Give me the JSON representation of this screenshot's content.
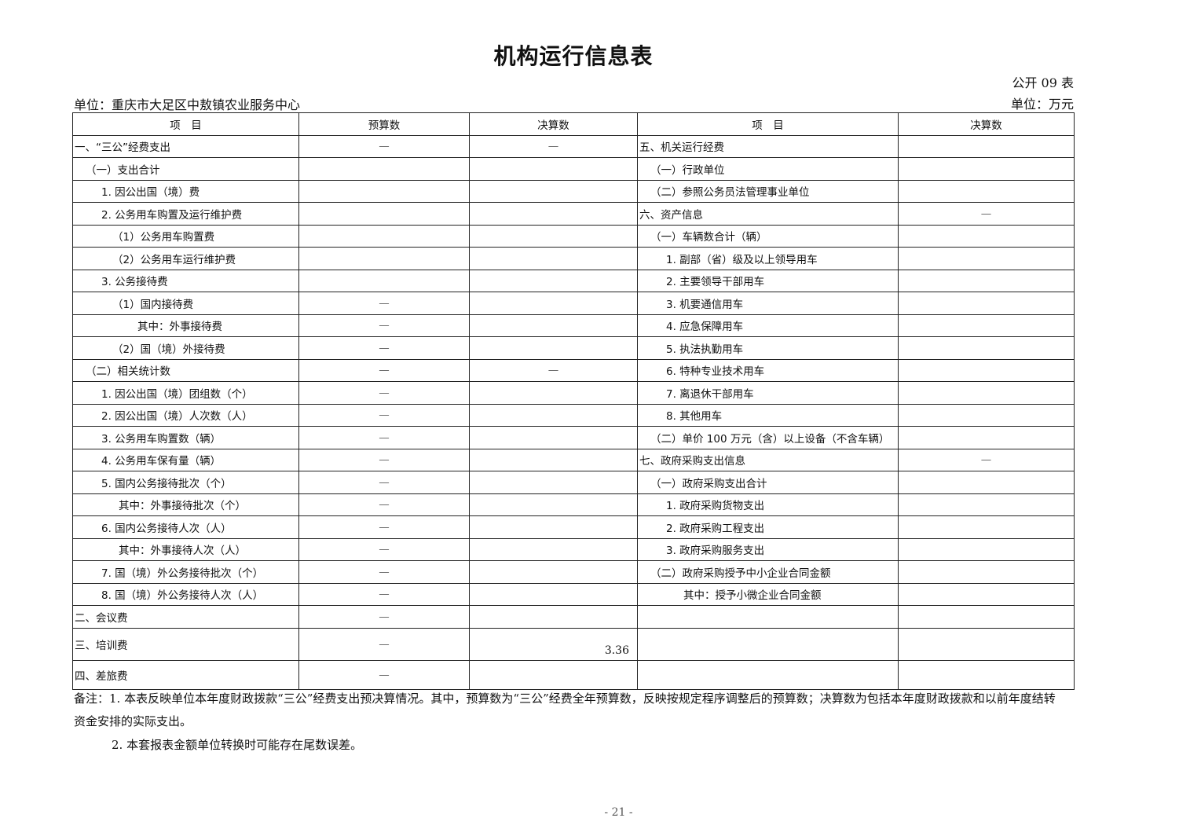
{
  "title": "机构运行信息表",
  "table_code": "公开 09 表",
  "unit_org": "单位：重庆市大足区中敖镇农业服务中心",
  "unit_money": "单位：万元",
  "headers": [
    "项　目",
    "预算数",
    "决算数",
    "项　目",
    "决算数"
  ],
  "rows": [
    [
      "一、“三公”经费支出",
      "—",
      "—",
      "五、机关运行经费",
      ""
    ],
    [
      "（一）支出合计",
      "",
      "",
      "（一）行政单位",
      ""
    ],
    [
      "1. 因公出国（境）费",
      "",
      "",
      "（二）参照公务员法管理事业单位",
      ""
    ],
    [
      "2. 公务用车购置及运行维护费",
      "",
      "",
      "六、资产信息",
      "—"
    ],
    [
      "（1）公务用车购置费",
      "",
      "",
      "（一）车辆数合计（辆）",
      ""
    ],
    [
      "（2）公务用车运行维护费",
      "",
      "",
      "1. 副部（省）级及以上领导用车",
      ""
    ],
    [
      "3. 公务接待费",
      "",
      "",
      "2. 主要领导干部用车",
      ""
    ],
    [
      "（1）国内接待费",
      "—",
      "",
      "3. 机要通信用车",
      ""
    ],
    [
      "其中：外事接待费",
      "—",
      "",
      "4. 应急保障用车",
      ""
    ],
    [
      "（2）国（境）外接待费",
      "—",
      "",
      "5. 执法执勤用车",
      ""
    ],
    [
      "（二）相关统计数",
      "—",
      "—",
      "6. 特种专业技术用车",
      ""
    ],
    [
      "1. 因公出国（境）团组数（个）",
      "—",
      "",
      "7. 离退休干部用车",
      ""
    ],
    [
      "2. 因公出国（境）人次数（人）",
      "—",
      "",
      "8. 其他用车",
      ""
    ],
    [
      "3. 公务用车购置数（辆）",
      "—",
      "",
      "（二）单价 100 万元（含）以上设备（不含车辆）",
      ""
    ],
    [
      "4. 公务用车保有量（辆）",
      "—",
      "",
      "七、政府采购支出信息",
      "—"
    ],
    [
      "5. 国内公务接待批次（个）",
      "—",
      "",
      "（一）政府采购支出合计",
      ""
    ],
    [
      "其中：外事接待批次（个）",
      "—",
      "",
      "1. 政府采购货物支出",
      ""
    ],
    [
      "6. 国内公务接待人次（人）",
      "—",
      "",
      "2. 政府采购工程支出",
      ""
    ],
    [
      "其中：外事接待人次（人）",
      "—",
      "",
      "3. 政府采购服务支出",
      ""
    ],
    [
      "7. 国（境）外公务接待批次（个）",
      "—",
      "",
      "（二）政府采购授予中小企业合同金额",
      ""
    ],
    [
      "8. 国（境）外公务接待人次（人）",
      "—",
      "",
      "其中：授予小微企业合同金额",
      ""
    ],
    [
      "二、会议费",
      "—",
      "",
      "",
      ""
    ],
    [
      "三、培训费",
      "—",
      "3.36",
      "",
      ""
    ],
    [
      "四、差旅费",
      "—",
      "",
      "",
      ""
    ]
  ],
  "notes": [
    "备注：1. 本表反映单位本年度财政拨款“三公”经费支出预决算情况。其中，预算数为“三公”经费全年预算数，反映按规定程序调整后的预算数；决算数为包括本年度财政拨款和以前年度结转",
    "资金安排的实际支出。",
    "2. 本套报表金额单位转换时可能存在尾数误差。"
  ],
  "page_number": "- 21 -"
}
